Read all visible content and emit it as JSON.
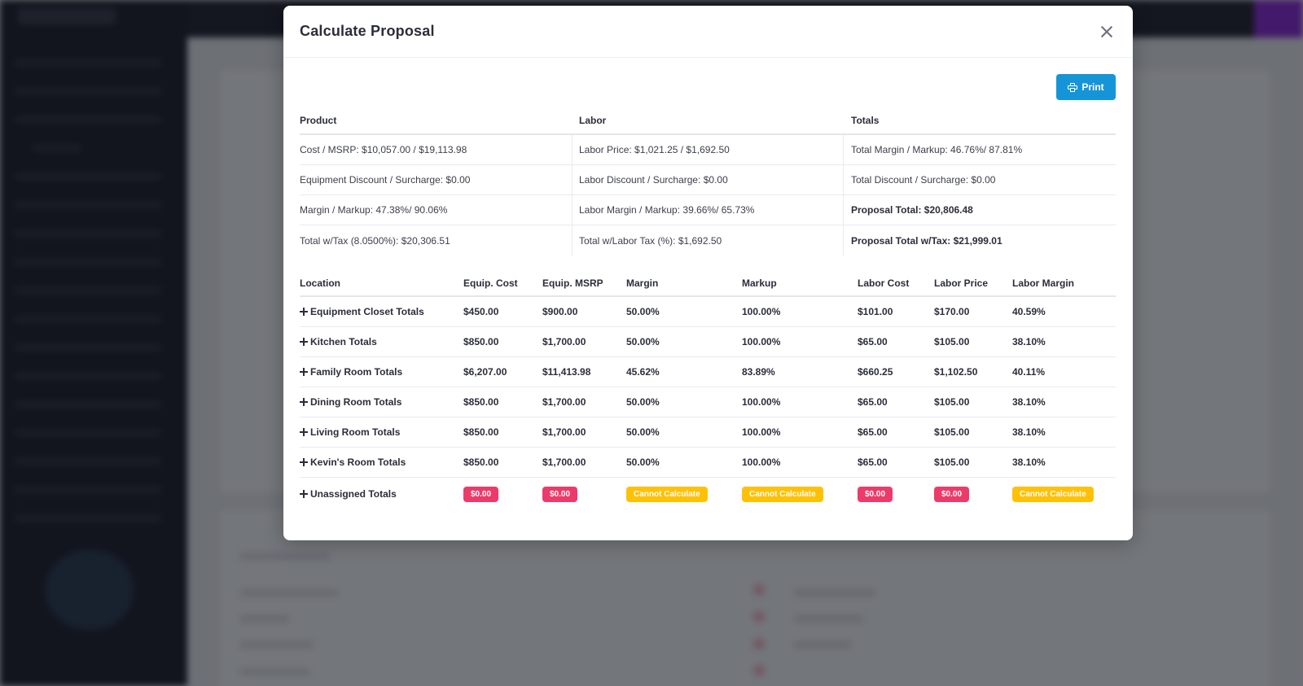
{
  "modal": {
    "title": "Calculate Proposal",
    "print_label": "Print"
  },
  "summary": {
    "headers": [
      "Product",
      "Labor",
      "Totals"
    ],
    "rows": [
      [
        "Cost / MSRP: $10,057.00 / $19,113.98",
        "Labor Price: $1,021.25 / $1,692.50",
        "Total Margin / Markup: 46.76%/ 87.81%"
      ],
      [
        "Equipment Discount / Surcharge: $0.00",
        "Labor Discount / Surcharge: $0.00",
        "Total Discount / Surcharge: $0.00"
      ],
      [
        "Margin / Markup: 47.38%/ 90.06%",
        "Labor Margin / Markup: 39.66%/ 65.73%",
        "Proposal Total: $20,806.48"
      ],
      [
        "Total w/Tax (8.0500%): $20,306.51",
        "Total w/Labor Tax (%): $1,692.50",
        "Proposal Total w/Tax: $21,999.01"
      ]
    ]
  },
  "locations": {
    "headers": [
      "Location",
      "Equip. Cost",
      "Equip. MSRP",
      "Margin",
      "Markup",
      "Labor Cost",
      "Labor Price",
      "Labor Margin"
    ],
    "rows": [
      [
        "Equipment Closet Totals",
        "$450.00",
        "$900.00",
        "50.00%",
        "100.00%",
        "$101.00",
        "$170.00",
        "40.59%"
      ],
      [
        "Kitchen Totals",
        "$850.00",
        "$1,700.00",
        "50.00%",
        "100.00%",
        "$65.00",
        "$105.00",
        "38.10%"
      ],
      [
        "Family Room Totals",
        "$6,207.00",
        "$11,413.98",
        "45.62%",
        "83.89%",
        "$660.25",
        "$1,102.50",
        "40.11%"
      ],
      [
        "Dining Room Totals",
        "$850.00",
        "$1,700.00",
        "50.00%",
        "100.00%",
        "$65.00",
        "$105.00",
        "38.10%"
      ],
      [
        "Living Room Totals",
        "$850.00",
        "$1,700.00",
        "50.00%",
        "100.00%",
        "$65.00",
        "$105.00",
        "38.10%"
      ],
      [
        "Kevin's Room Totals",
        "$850.00",
        "$1,700.00",
        "50.00%",
        "100.00%",
        "$65.00",
        "$105.00",
        "38.10%"
      ]
    ],
    "unassigned": {
      "label": "Unassigned Totals",
      "equip_cost": "$0.00",
      "equip_msrp": "$0.00",
      "margin": "Cannot Calculate",
      "markup": "Cannot Calculate",
      "labor_cost": "$0.00",
      "labor_price": "$0.00",
      "labor_margin": "Cannot Calculate"
    }
  },
  "colors": {
    "primary": "#1595d7",
    "badge_red": "#ec3b6a",
    "badge_yellow": "#ffc107"
  },
  "icons": {
    "close": "close-icon",
    "print": "printer-icon",
    "expand": "plus-icon"
  }
}
